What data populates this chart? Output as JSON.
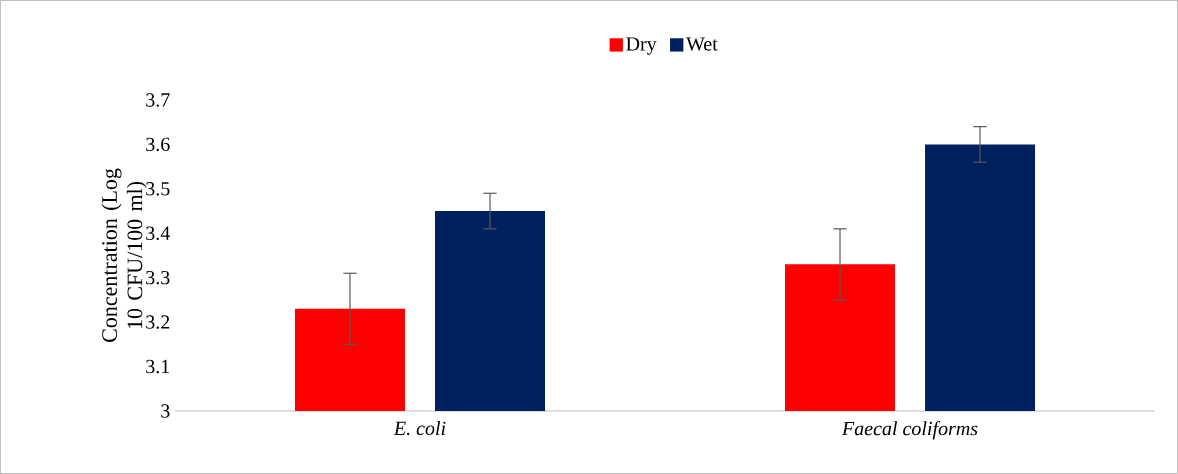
{
  "chart_data": {
    "type": "bar",
    "ylabel": "Concentration (Log 10 CFU/100 ml)",
    "categories": [
      "E. coli",
      "Faecal coliforms"
    ],
    "series": [
      {
        "name": "Dry",
        "color": "#ff0000",
        "values": [
          3.23,
          3.33
        ],
        "errors": [
          0.08,
          0.08
        ]
      },
      {
        "name": "Wet",
        "color": "#002060",
        "values": [
          3.45,
          3.6
        ],
        "errors": [
          0.04,
          0.04
        ]
      }
    ],
    "ylim": [
      3,
      3.7
    ],
    "yticks": [
      3,
      3.1,
      3.2,
      3.3,
      3.4,
      3.5,
      3.6,
      3.7
    ],
    "grid": false,
    "legend": "top"
  }
}
